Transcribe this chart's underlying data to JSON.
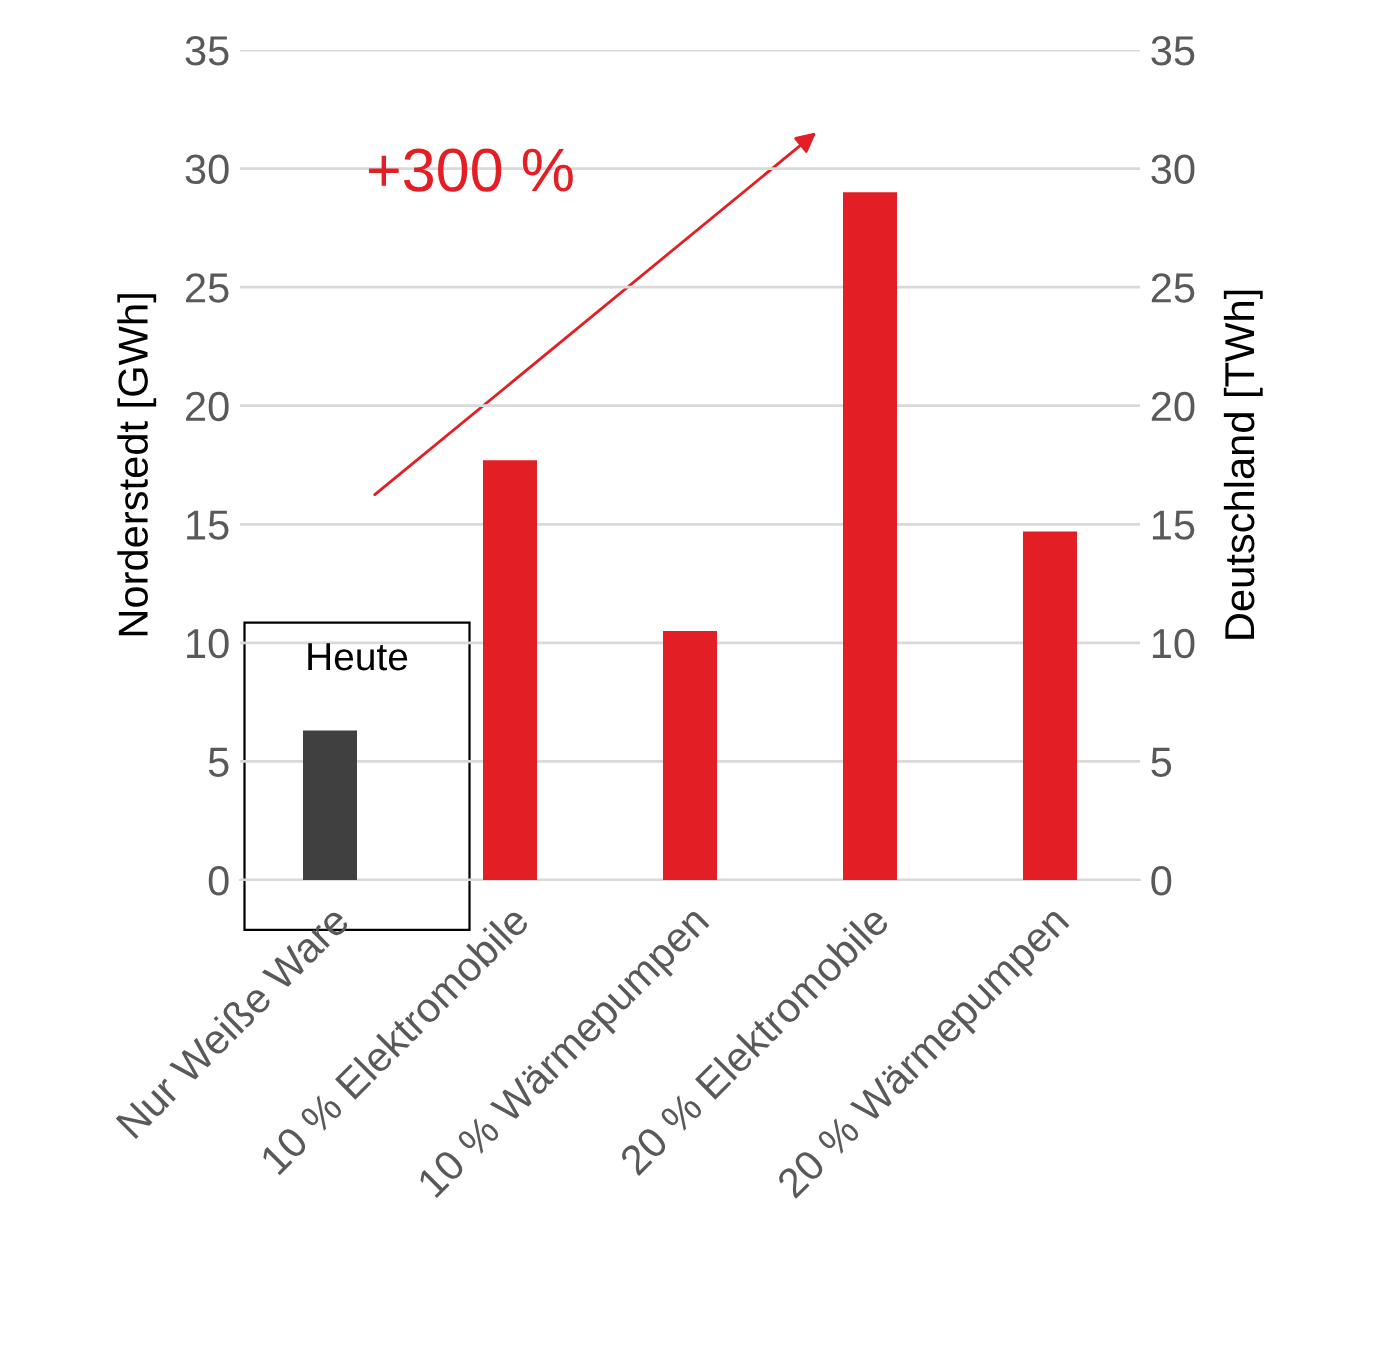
{
  "chart_data": {
    "type": "bar",
    "ylabel": "Norderstedt [GWh]",
    "y2label": "Deutschland [TWh]",
    "categories": [
      "Nur Weiße Ware",
      "10 % Elektromobile",
      "10 % Wärmepumpen",
      "20 % Elektromobile",
      "20 % Wärmepumpen"
    ],
    "values": [
      6.3,
      17.7,
      10.5,
      29.0,
      14.7
    ],
    "colors": [
      "#404040",
      "#e31e24",
      "#e31e24",
      "#e31e24",
      "#e31e24"
    ],
    "ylim": [
      0,
      35
    ],
    "yticks": [
      0,
      5,
      10,
      15,
      20,
      25,
      30,
      35
    ],
    "y2lim": [
      0,
      35
    ],
    "y2ticks": [
      0,
      5,
      10,
      15,
      20,
      25,
      30,
      35
    ],
    "grid": "y",
    "legend": false,
    "annotations": [
      "+300 %",
      "Heute"
    ]
  }
}
